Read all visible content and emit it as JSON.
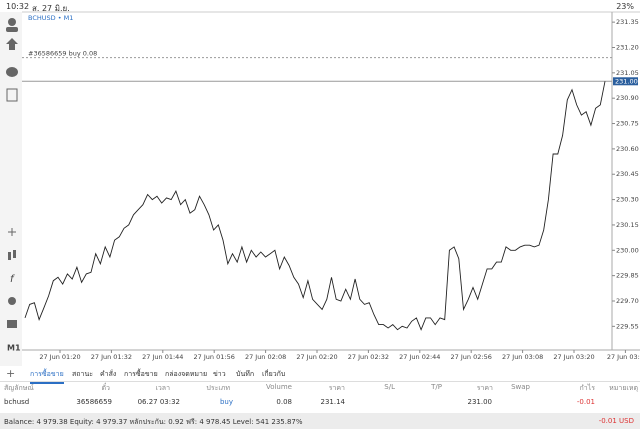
{
  "status_bar": {
    "time": "10:32",
    "date": "ส. 27 มิ.ย.",
    "battery": "23%"
  },
  "chart": {
    "type": "line",
    "title": "BCHUSD • M1",
    "color": "#222222",
    "values": [
      229.6,
      229.68,
      229.69,
      229.59,
      229.66,
      229.73,
      229.82,
      229.84,
      229.8,
      229.86,
      229.83,
      229.9,
      229.81,
      229.86,
      229.87,
      229.98,
      229.92,
      230.02,
      229.96,
      230.06,
      230.08,
      230.13,
      230.15,
      230.21,
      230.24,
      230.27,
      230.33,
      230.3,
      230.32,
      230.28,
      230.31,
      230.3,
      230.35,
      230.27,
      230.3,
      230.22,
      230.24,
      230.32,
      230.27,
      230.21,
      230.12,
      230.15,
      230.06,
      229.92,
      229.98,
      229.93,
      230.02,
      229.93,
      230.0,
      229.96,
      229.99,
      229.96,
      229.98,
      230.0,
      229.89,
      229.96,
      229.91,
      229.84,
      229.8,
      229.72,
      229.82,
      229.71,
      229.68,
      229.65,
      229.71,
      229.84,
      229.71,
      229.7,
      229.77,
      229.71,
      229.83,
      229.71,
      229.68,
      229.69,
      229.62,
      229.56,
      229.56,
      229.54,
      229.56,
      229.53,
      229.55,
      229.54,
      229.58,
      229.6,
      229.53,
      229.6,
      229.6,
      229.56,
      229.6,
      229.59,
      230.0,
      230.02,
      229.95,
      229.65,
      229.71,
      229.78,
      229.71,
      229.8,
      229.89,
      229.89,
      229.93,
      229.93,
      230.02,
      230.0,
      230.0,
      230.02,
      230.03,
      230.03,
      230.02,
      230.03,
      230.12,
      230.3,
      230.57,
      230.57,
      230.68,
      230.89,
      230.95,
      230.86,
      230.8,
      230.82,
      230.74,
      230.84,
      230.86,
      231.0
    ],
    "ylim": [
      229.41,
      231.41
    ],
    "yticks": [
      231.35,
      {
        "value": 231.2,
        "label": "231.20"
      },
      231.05,
      {
        "value": 230.9,
        "label": "230.90"
      },
      230.75,
      {
        "value": 230.6,
        "label": "230.60"
      },
      230.45,
      {
        "value": 230.3,
        "label": "230.30"
      },
      230.15,
      {
        "value": 230.0,
        "label": "230.00"
      },
      229.85,
      {
        "value": 229.7,
        "label": "229.70"
      },
      229.55
    ],
    "xticks": [
      "27 Jun 01:20",
      "27 Jun 01:32",
      "27 Jun 01:44",
      "27 Jun 01:56",
      "27 Jun 02:08",
      "27 Jun 02:20",
      "27 Jun 02:32",
      "27 Jun 02:44",
      "27 Jun 02:56",
      "27 Jun 03:08",
      "27 Jun 03:20",
      "27 Jun 03:3"
    ],
    "current_price": {
      "value": 231.0,
      "label": "231.00"
    },
    "order_line": {
      "label": "#36586659 buy 0.08",
      "value": 231.14
    }
  },
  "tabs": [
    "การซื้อขาย",
    "สถานะ",
    "คำสั่ง",
    "การซื้อขาย",
    "กล่องจดหมาย",
    "ข่าว",
    "บันทึก",
    "เกี่ยวกับ"
  ],
  "table": {
    "header": [
      "สัญลักษณ์",
      "ตั๋ว",
      "เวลา",
      "ประเภท",
      "Volume",
      "ราคา",
      "S/L",
      "T/P",
      "ราคา",
      "Swap",
      "กำไร",
      "หมายเหตุ"
    ],
    "rows": [
      [
        "bchusd",
        "36586659",
        "06.27 03:32",
        "buy",
        "0.08",
        "231.14",
        "231.00",
        "-0.01"
      ]
    ]
  },
  "footer": {
    "summary": "Balance: 4 979.38 Equity: 4 979.37 หลักประกัน: 0.92 ฟรี: 4 978.45 Level: 541 235.87%",
    "profit": "-0.01 USD"
  }
}
